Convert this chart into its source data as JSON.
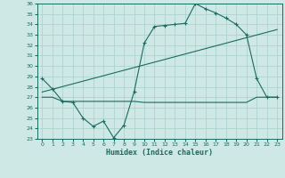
{
  "xlabel": "Humidex (Indice chaleur)",
  "bg_color": "#cde8e5",
  "grid_color": "#aacfcc",
  "line_color": "#1a6b62",
  "ylim": [
    23,
    36
  ],
  "xlim": [
    -0.5,
    23.5
  ],
  "yticks": [
    23,
    24,
    25,
    26,
    27,
    28,
    29,
    30,
    31,
    32,
    33,
    34,
    35,
    36
  ],
  "xticks": [
    0,
    1,
    2,
    3,
    4,
    5,
    6,
    7,
    8,
    9,
    10,
    11,
    12,
    13,
    14,
    15,
    16,
    17,
    18,
    19,
    20,
    21,
    22,
    23
  ],
  "line1_x": [
    0,
    1,
    2,
    3,
    4,
    5,
    6,
    7,
    8,
    9,
    10,
    11,
    12,
    13,
    14,
    15,
    16,
    17,
    18,
    19,
    20,
    21,
    22,
    23
  ],
  "line1_y": [
    28.8,
    27.8,
    26.6,
    26.5,
    25.0,
    24.2,
    24.7,
    23.1,
    24.3,
    27.5,
    32.2,
    33.8,
    33.9,
    34.0,
    34.1,
    36.0,
    35.5,
    35.1,
    34.6,
    34.0,
    33.0,
    28.8,
    27.0,
    27.0
  ],
  "line2_x": [
    0,
    23
  ],
  "line2_y": [
    27.5,
    33.5
  ],
  "line3_x": [
    0,
    1,
    2,
    3,
    4,
    5,
    6,
    7,
    8,
    9,
    10,
    11,
    12,
    13,
    14,
    15,
    16,
    17,
    18,
    19,
    20,
    21,
    22,
    23
  ],
  "line3_y": [
    27.0,
    27.0,
    26.6,
    26.6,
    26.6,
    26.6,
    26.6,
    26.6,
    26.6,
    26.6,
    26.5,
    26.5,
    26.5,
    26.5,
    26.5,
    26.5,
    26.5,
    26.5,
    26.5,
    26.5,
    26.5,
    27.0,
    27.0,
    27.0
  ]
}
